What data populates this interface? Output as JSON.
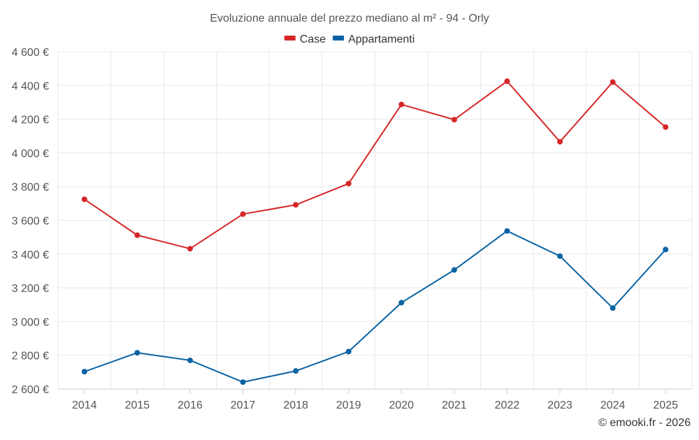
{
  "chart_data": {
    "type": "line",
    "title": "Evoluzione annuale del prezzo mediano al m² - 94 - Orly",
    "categories": [
      "2014",
      "2015",
      "2016",
      "2017",
      "2018",
      "2019",
      "2020",
      "2021",
      "2022",
      "2023",
      "2024",
      "2025"
    ],
    "series": [
      {
        "name": "Case",
        "color": "#d62728",
        "values": [
          3725,
          3512,
          3432,
          3637,
          3692,
          3818,
          4287,
          4197,
          4425,
          4066,
          4420,
          4153
        ]
      },
      {
        "name": "Appartamenti",
        "color": "#0a64a4",
        "values": [
          2703,
          2815,
          2770,
          2641,
          2707,
          2822,
          3112,
          3306,
          3537,
          3388,
          3080,
          3427
        ]
      }
    ],
    "ylim": [
      2600,
      4600
    ],
    "yticks": [
      2600,
      2800,
      3000,
      3200,
      3400,
      3600,
      3800,
      4000,
      4200,
      4400,
      4600
    ],
    "ytick_labels": [
      "2 600 €",
      "2 800 €",
      "3 000 €",
      "3 200 €",
      "3 400 €",
      "3 600 €",
      "3 800 €",
      "4 000 €",
      "4 200 €",
      "4 400 €",
      "4 600 €"
    ],
    "legend_position": "top-center",
    "grid": true
  },
  "credit": "© emooki.fr - 2026"
}
